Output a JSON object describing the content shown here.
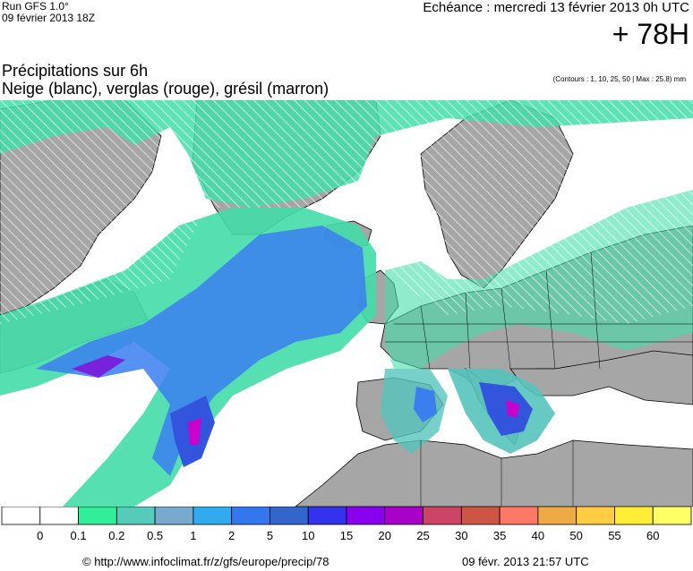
{
  "header": {
    "run_title": "Run GFS 1.0°",
    "run_date": "09 février 2013 18Z",
    "echeance": "Echéance : mercredi 13 février 2013 0h UTC",
    "lead_time": "+ 78H"
  },
  "title": {
    "line1": "Précipitations sur 6h",
    "line2": "Neige (blanc), verglas (rouge), grésil (marron)",
    "contours_note": "(Contours : 1, 10, 25, 50 | Max : 25.8) mm"
  },
  "legend": {
    "labels": [
      "0",
      "0.1",
      "0.2",
      "0.5",
      "1",
      "2",
      "5",
      "10",
      "15",
      "20",
      "25",
      "30",
      "35",
      "40",
      "50",
      "55",
      "60"
    ],
    "colors": [
      "#ffffff",
      "#ffffff",
      "#33ee99",
      "#55ccbb",
      "#77aacc",
      "#33aaee",
      "#3377ee",
      "#3366cc",
      "#3333ee",
      "#8800ee",
      "#aa00cc",
      "#cc4466",
      "#cc5544",
      "#ff7766",
      "#eeaa44",
      "#ffcc44",
      "#ffee33",
      "#ffff66"
    ]
  },
  "map_colors": {
    "sea": "#ffffff",
    "land": "#a6a6a6",
    "coast": "#000000",
    "level1": "#44ddaa",
    "level2": "#55c4bb",
    "level3": "#6f9fd0",
    "level4": "#3a7ef0",
    "level5": "#3355dd",
    "level6": "#7722dd",
    "level7": "#cc00cc"
  },
  "footer": {
    "source": "© http://www.infoclimat.fr/z/gfs/europe/precip/78",
    "generated": "09 févr. 2013 21:57 UTC"
  }
}
